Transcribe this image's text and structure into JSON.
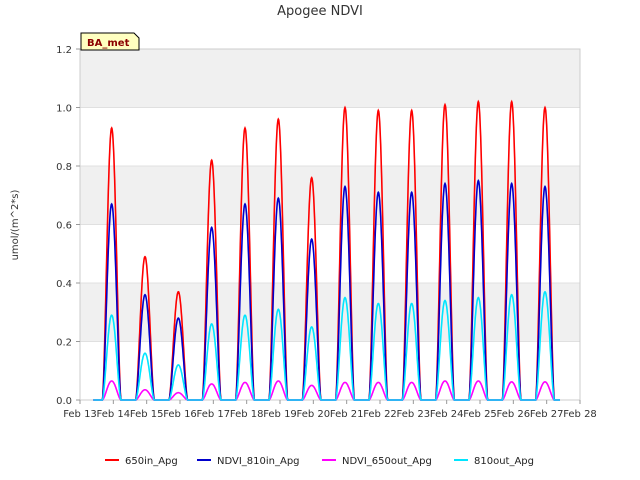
{
  "chart_data": {
    "type": "line",
    "title": "Apogee NDVI",
    "ylabel": "umol/(m^2*s)",
    "xlabel": "",
    "badge": "BA_met",
    "ylim": [
      0,
      1.2
    ],
    "yticks": [
      "0.0",
      "0.2",
      "0.4",
      "0.6",
      "0.8",
      "1.0",
      "1.2"
    ],
    "xlim": [
      13,
      28
    ],
    "xticks": [
      "Feb 13",
      "Feb 14",
      "Feb 15",
      "Feb 16",
      "Feb 17",
      "Feb 18",
      "Feb 19",
      "Feb 20",
      "Feb 21",
      "Feb 22",
      "Feb 23",
      "Feb 24",
      "Feb 25",
      "Feb 26",
      "Feb 27",
      "Feb 28"
    ],
    "grid": "horizontal bands",
    "legend_position": "bottom",
    "series": [
      {
        "name": "650in_Apg",
        "color": "#ff0000",
        "daily_peaks": [
          0.93,
          0.49,
          0.37,
          0.82,
          0.93,
          0.96,
          0.76,
          1.0,
          0.99,
          0.99,
          1.01,
          1.02,
          1.02,
          1.0
        ]
      },
      {
        "name": "NDVI_810in_Apg",
        "color": "#0000cc",
        "daily_peaks": [
          0.67,
          0.36,
          0.28,
          0.59,
          0.67,
          0.69,
          0.55,
          0.73,
          0.71,
          0.71,
          0.74,
          0.75,
          0.74,
          0.73
        ]
      },
      {
        "name": "NDVI_650out_Apg",
        "color": "#ff00ff",
        "daily_peaks": [
          0.065,
          0.035,
          0.025,
          0.055,
          0.06,
          0.065,
          0.05,
          0.06,
          0.06,
          0.06,
          0.065,
          0.065,
          0.062,
          0.062
        ]
      },
      {
        "name": "810out_Apg",
        "color": "#00e5ff",
        "daily_peaks": [
          0.29,
          0.16,
          0.12,
          0.26,
          0.29,
          0.31,
          0.25,
          0.35,
          0.33,
          0.33,
          0.34,
          0.35,
          0.36,
          0.37
        ]
      }
    ],
    "day_start": 14
  }
}
